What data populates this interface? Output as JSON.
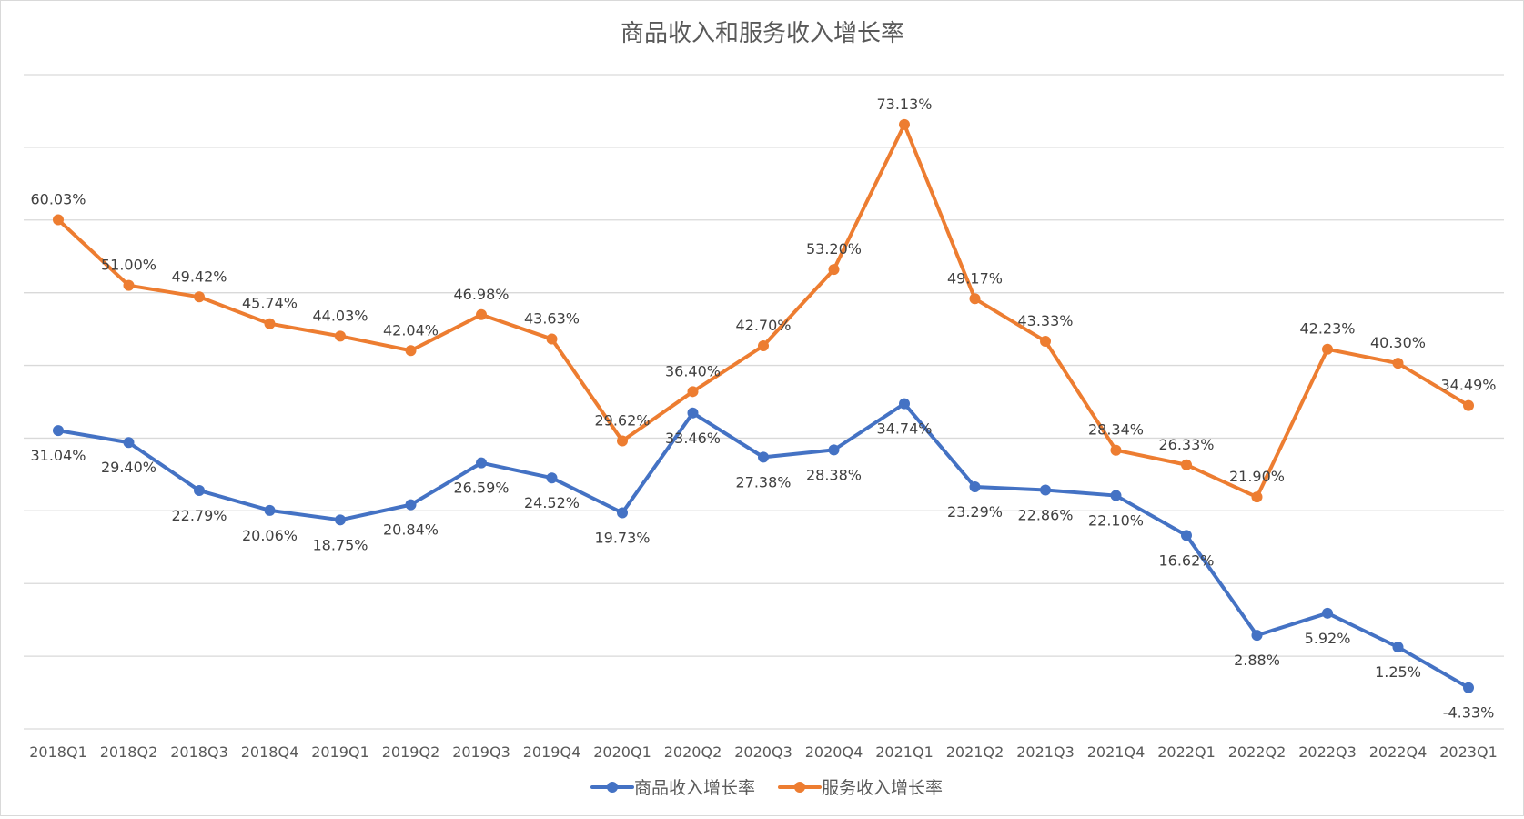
{
  "chart_data": {
    "type": "line",
    "title": "商品收入和服务收入增长率",
    "xlabel": "",
    "ylabel": "",
    "categories": [
      "2018Q1",
      "2018Q2",
      "2018Q3",
      "2018Q4",
      "2019Q1",
      "2019Q2",
      "2019Q3",
      "2019Q4",
      "2020Q1",
      "2020Q2",
      "2020Q3",
      "2020Q4",
      "2021Q1",
      "2021Q2",
      "2021Q3",
      "2021Q4",
      "2022Q1",
      "2022Q2",
      "2022Q3",
      "2022Q4",
      "2023Q1"
    ],
    "ylim": [
      -10,
      80
    ],
    "grid": true,
    "legend_position": "bottom",
    "series": [
      {
        "name": "商品收入增长率",
        "color": "#4472C4",
        "values": [
          31.04,
          29.4,
          22.79,
          20.06,
          18.75,
          20.84,
          26.59,
          24.52,
          19.73,
          33.46,
          27.38,
          28.38,
          34.74,
          23.29,
          22.86,
          22.1,
          16.62,
          2.88,
          5.92,
          1.25,
          -4.33
        ],
        "labels": [
          "31.04%",
          "29.40%",
          "22.79%",
          "20.06%",
          "18.75%",
          "20.84%",
          "26.59%",
          "24.52%",
          "19.73%",
          "33.46%",
          "27.38%",
          "28.38%",
          "34.74%",
          "23.29%",
          "22.86%",
          "22.10%",
          "16.62%",
          "2.88%",
          "5.92%",
          "1.25%",
          "-4.33%"
        ]
      },
      {
        "name": "服务收入增长率",
        "color": "#ED7D31",
        "values": [
          60.03,
          51.0,
          49.42,
          45.74,
          44.03,
          42.04,
          46.98,
          43.63,
          29.62,
          36.4,
          42.7,
          53.2,
          73.13,
          49.17,
          43.33,
          28.34,
          26.33,
          21.9,
          42.23,
          40.3,
          34.49
        ],
        "labels": [
          "60.03%",
          "51.00%",
          "49.42%",
          "45.74%",
          "44.03%",
          "42.04%",
          "46.98%",
          "43.63%",
          "29.62%",
          "36.40%",
          "42.70%",
          "53.20%",
          "73.13%",
          "49.17%",
          "43.33%",
          "28.34%",
          "26.33%",
          "21.90%",
          "42.23%",
          "40.30%",
          "34.49%"
        ]
      }
    ]
  }
}
